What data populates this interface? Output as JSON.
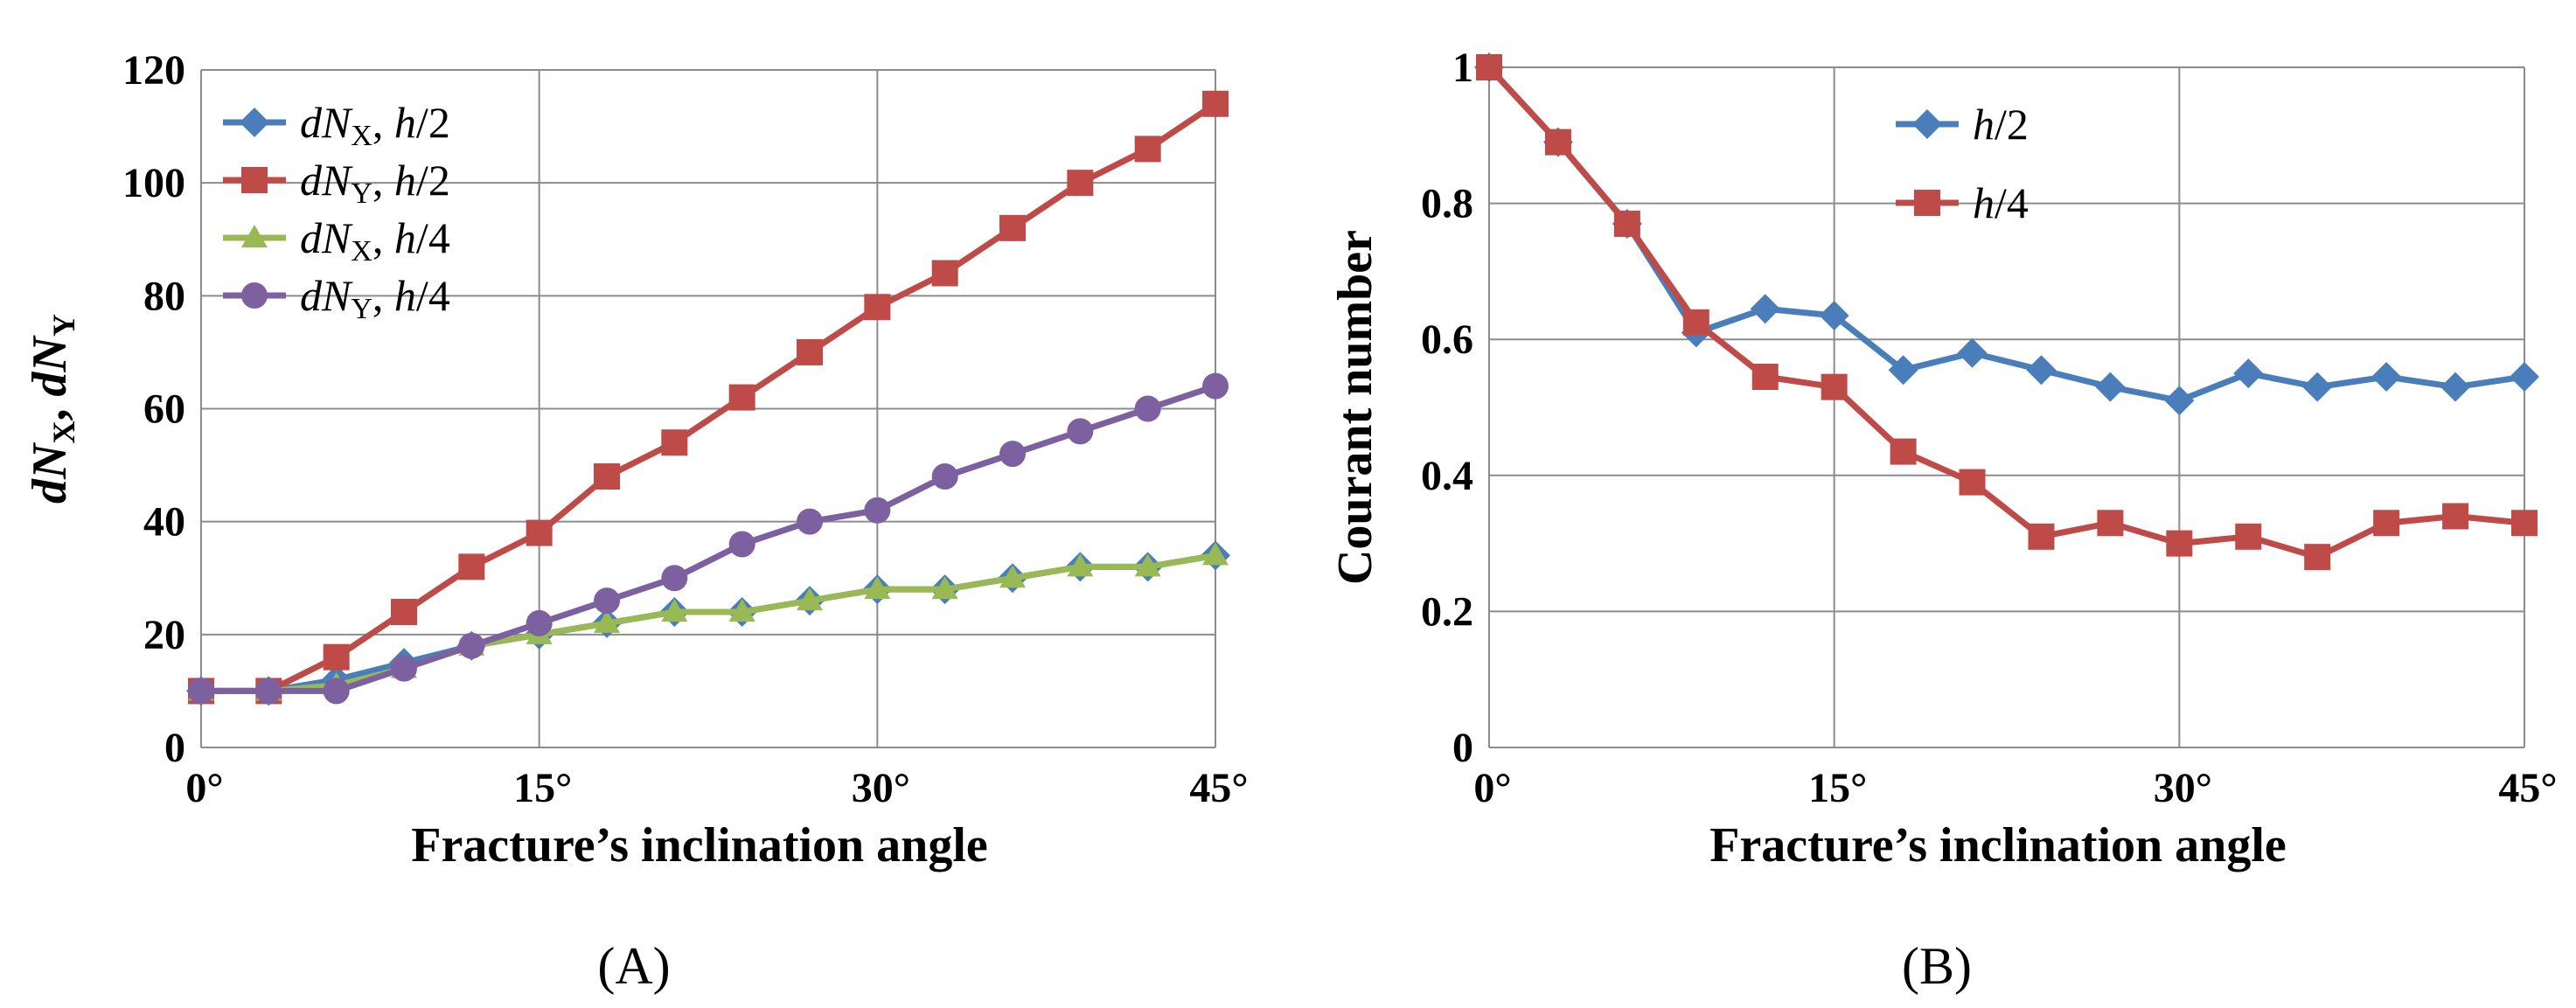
{
  "chart_data": [
    {
      "type": "line",
      "panel_label": "(A)",
      "xlabel": "Fracture’s inclination angle",
      "ylabel": "dNX, dNY",
      "ylabel_parts": {
        "d1": "d",
        "N1": "N",
        "sub1": "X",
        "sep": ", ",
        "d2": "d",
        "N2": "N",
        "sub2": "Y"
      },
      "x": [
        0,
        3,
        6,
        9,
        12,
        15,
        18,
        21,
        24,
        27,
        30,
        33,
        36,
        39,
        42,
        45
      ],
      "xlim": [
        0,
        45
      ],
      "ylim": [
        0,
        120
      ],
      "xticks": [
        0,
        15,
        30,
        45
      ],
      "xtick_labels": [
        "0°",
        "15°",
        "30°",
        "45°"
      ],
      "yticks": [
        0,
        20,
        40,
        60,
        80,
        100,
        120
      ],
      "ytick_labels": [
        "0",
        "20",
        "40",
        "60",
        "80",
        "100",
        "120"
      ],
      "grid": "horizontal and vertical",
      "legend_position": "top-left",
      "series": [
        {
          "name": "dNX, h/2",
          "legend": {
            "d": "d",
            "N": "N",
            "sub": "X",
            "sep": ", ",
            "h": "h",
            "frac": "/2"
          },
          "color": "#4a7ebb",
          "marker": "diamond",
          "values": [
            10,
            10,
            12,
            15,
            18,
            20,
            22,
            24,
            24,
            26,
            28,
            28,
            30,
            32,
            32,
            34
          ]
        },
        {
          "name": "dNY, h/2",
          "legend": {
            "d": "d",
            "N": "N",
            "sub": "Y",
            "sep": ", ",
            "h": "h",
            "frac": "/2"
          },
          "color": "#be4b48",
          "marker": "square",
          "values": [
            10,
            10,
            16,
            24,
            32,
            38,
            48,
            54,
            62,
            70,
            78,
            84,
            92,
            100,
            106,
            114
          ]
        },
        {
          "name": "dNX, h/4",
          "legend": {
            "d": "d",
            "N": "N",
            "sub": "X",
            "sep": ", ",
            "h": "h",
            "frac": "/4"
          },
          "color": "#98b954",
          "marker": "triangle",
          "values": [
            10,
            10,
            11,
            14,
            18,
            20,
            22,
            24,
            24,
            26,
            28,
            28,
            30,
            32,
            32,
            34
          ]
        },
        {
          "name": "dNY, h/4",
          "legend": {
            "d": "d",
            "N": "N",
            "sub": "Y",
            "sep": ", ",
            "h": "h",
            "frac": "/4"
          },
          "color": "#7d60a0",
          "marker": "circle",
          "values": [
            10,
            10,
            10,
            14,
            18,
            22,
            26,
            30,
            36,
            40,
            42,
            48,
            52,
            56,
            60,
            64
          ]
        }
      ]
    },
    {
      "type": "line",
      "panel_label": "(B)",
      "xlabel": "Fracture’s inclination angle",
      "ylabel": "Courant number",
      "x": [
        0,
        3,
        6,
        9,
        12,
        15,
        18,
        21,
        24,
        27,
        30,
        33,
        36,
        39,
        42,
        45
      ],
      "xlim": [
        0,
        45
      ],
      "ylim": [
        0,
        1
      ],
      "xticks": [
        0,
        15,
        30,
        45
      ],
      "xtick_labels": [
        "0°",
        "15°",
        "30°",
        "45°"
      ],
      "yticks": [
        0,
        0.2,
        0.4,
        0.6,
        0.8,
        1
      ],
      "ytick_labels": [
        "0",
        "0.2",
        "0.4",
        "0.6",
        "0.8",
        "1"
      ],
      "grid": "horizontal and vertical",
      "legend_position": "top-center",
      "series": [
        {
          "name": "h/2",
          "legend": {
            "h": "h",
            "frac": "/2"
          },
          "color": "#4a7ebb",
          "marker": "diamond",
          "values": [
            1.0,
            0.89,
            0.77,
            0.61,
            0.645,
            0.635,
            0.555,
            0.58,
            0.555,
            0.53,
            0.51,
            0.55,
            0.53,
            0.545,
            0.53,
            0.545
          ]
        },
        {
          "name": "h/4",
          "legend": {
            "h": "h",
            "frac": "/4"
          },
          "color": "#be4b48",
          "marker": "square",
          "values": [
            1.0,
            0.89,
            0.77,
            0.625,
            0.545,
            0.53,
            0.435,
            0.39,
            0.31,
            0.33,
            0.3,
            0.31,
            0.28,
            0.33,
            0.34,
            0.33
          ]
        }
      ]
    }
  ]
}
